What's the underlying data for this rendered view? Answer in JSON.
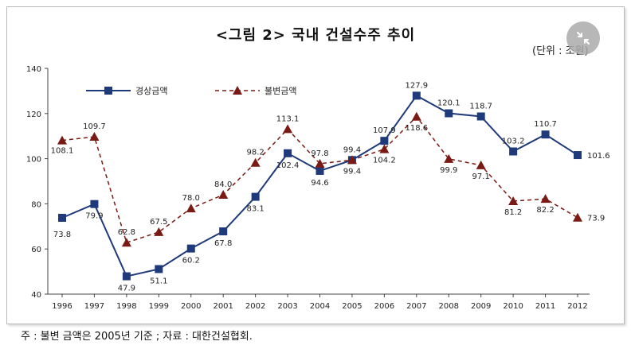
{
  "title": "<그림 2> 국내 건설수주 추이",
  "unit_label": "(단위 : 조원)",
  "note": "주 : 불변 금액은 2005년 기준 ; 자료 : 대한건설협회.",
  "overlay_icon": "collapse-arrows-icon",
  "colors": {
    "current": "#1f3a7a",
    "constant": "#7a1a14"
  },
  "chart_data": {
    "type": "line",
    "x": [
      "1996",
      "1997",
      "1998",
      "1999",
      "2000",
      "2001",
      "2002",
      "2003",
      "2004",
      "2005",
      "2006",
      "2007",
      "2008",
      "2009",
      "2010",
      "2011",
      "2012"
    ],
    "ylim": [
      40,
      140
    ],
    "yticks": [
      40,
      60,
      80,
      100,
      120,
      140
    ],
    "grid": false,
    "legend": "top-left",
    "series": [
      {
        "name": "경상금액",
        "marker": "square",
        "line": "solid",
        "values": [
          73.8,
          79.9,
          47.9,
          51.1,
          60.2,
          67.8,
          83.1,
          102.4,
          94.6,
          99.4,
          107.9,
          127.9,
          120.1,
          118.7,
          103.2,
          110.7,
          101.6
        ],
        "labels": [
          "73.8",
          "79.9",
          "47.9",
          "51.1",
          "60.2",
          "67.8",
          "83.1",
          "102.4",
          "94.6",
          "99.4",
          "107.9",
          "127.9",
          "120.1",
          "118.7",
          "103.2",
          "110.7",
          "101.6"
        ]
      },
      {
        "name": "불변금액",
        "marker": "triangle",
        "line": "dashed",
        "values": [
          108.1,
          109.7,
          62.8,
          67.5,
          78.0,
          84.0,
          98.2,
          113.1,
          97.8,
          99.4,
          104.2,
          118.6,
          99.9,
          97.1,
          81.2,
          82.2,
          73.9
        ],
        "labels": [
          "108.1",
          "109.7",
          "62.8",
          "67.5",
          "78.0",
          "84.0",
          "98.2",
          "113.1",
          "97.8",
          "99.4",
          "104.2",
          "118.6",
          "99.9",
          "97.1",
          "81.2",
          "82.2",
          "73.9"
        ]
      }
    ]
  }
}
